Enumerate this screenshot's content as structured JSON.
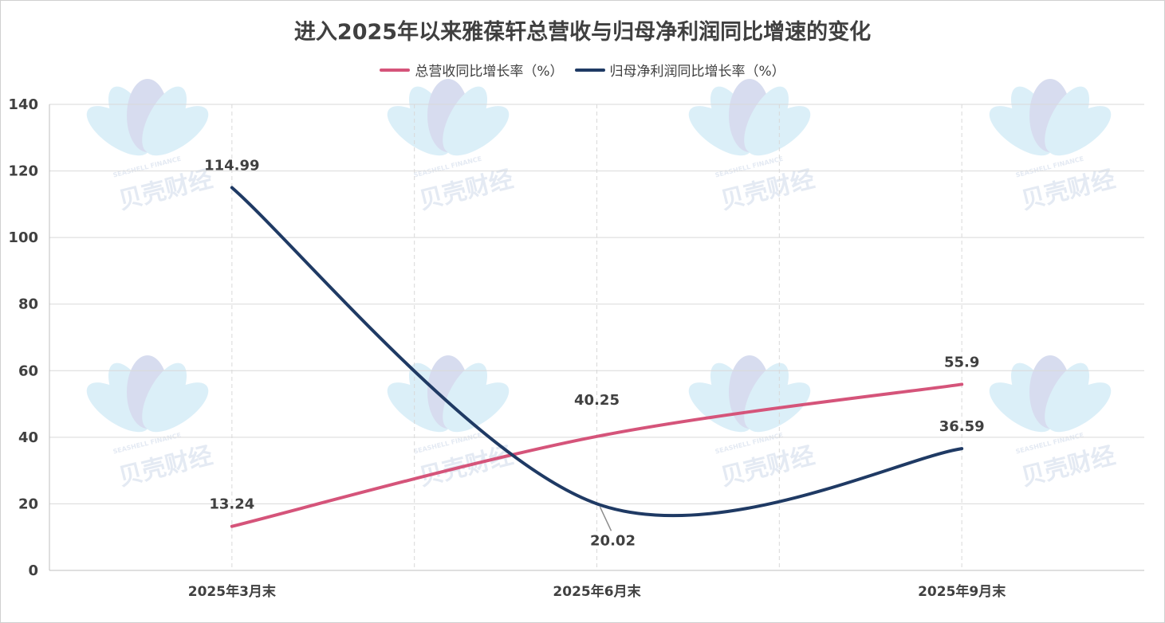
{
  "chart_data": {
    "type": "line",
    "title": "进入2025年以来雅葆轩总营收与归母净利润同比增速的变化",
    "categories": [
      "2025年3月末",
      "2025年6月末",
      "2025年9月末"
    ],
    "series": [
      {
        "name": "总营收同比增长率（%）",
        "values": [
          13.24,
          40.25,
          55.9
        ],
        "color": "#d5547a"
      },
      {
        "name": "归母净利润同比增长率（%）",
        "values": [
          114.99,
          20.02,
          36.59
        ],
        "color": "#1f3a64"
      }
    ],
    "data_labels": [
      [
        "13.24",
        "40.25",
        "55.9"
      ],
      [
        "114.99",
        "20.02",
        "36.59"
      ]
    ],
    "ylim": [
      0,
      140
    ],
    "yticks": [
      "0",
      "20",
      "40",
      "60",
      "80",
      "100",
      "120",
      "140"
    ],
    "grid": true,
    "legend_position": "top-center",
    "xlabel": "",
    "ylabel": ""
  },
  "watermark": {
    "text": "贝壳财经",
    "subtext": "SEASHELL FINANCE"
  }
}
